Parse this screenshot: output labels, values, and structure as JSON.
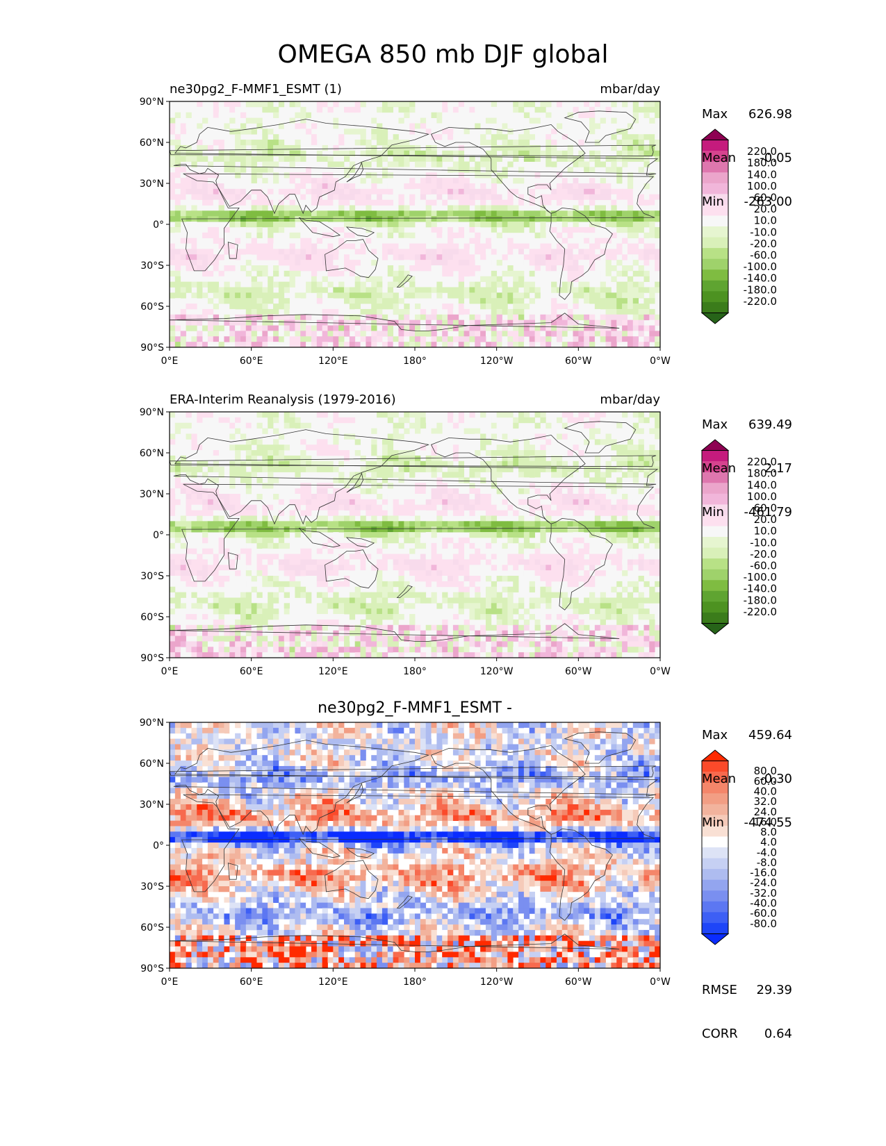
{
  "title": "OMEGA 850 mb DJF global",
  "panels": [
    {
      "id": "test",
      "left_title": "ne30pg2_F-MMF1_ESMT (1)",
      "center_title": "",
      "units": "mbar/day",
      "stats": [
        {
          "label": "Max",
          "value": "626.98"
        },
        {
          "label": "Mean",
          "value": "-0.05"
        },
        {
          "label": "Min",
          "value": "-263.00"
        }
      ],
      "colorbar_labels": [
        "220.0",
        "180.0",
        "140.0",
        "100.0",
        "60.0",
        "20.0",
        "10.0",
        "-10.0",
        "-20.0",
        "-60.0",
        "-100.0",
        "-140.0",
        "-180.0",
        "-220.0"
      ],
      "colorbar_colors": [
        "#8e0152",
        "#c51b7d",
        "#d6448f",
        "#de77ae",
        "#eba5cb",
        "#f1b6da",
        "#f8dbec",
        "#fde0ef",
        "#f7f7f7",
        "#e6f5d0",
        "#d9f0b9",
        "#b8e186",
        "#9fd26b",
        "#7fbc41",
        "#5fa431",
        "#4d9221",
        "#3b7c1b",
        "#276419"
      ],
      "footer": []
    },
    {
      "id": "reference",
      "left_title": "ERA-Interim Reanalysis (1979-2016)",
      "center_title": "",
      "units": "mbar/day",
      "stats": [
        {
          "label": "Max",
          "value": "639.49"
        },
        {
          "label": "Mean",
          "value": "2.17"
        },
        {
          "label": "Min",
          "value": "-461.79"
        }
      ],
      "colorbar_labels": [
        "220.0",
        "180.0",
        "140.0",
        "100.0",
        "60.0",
        "20.0",
        "10.0",
        "-10.0",
        "-20.0",
        "-60.0",
        "-100.0",
        "-140.0",
        "-180.0",
        "-220.0"
      ],
      "colorbar_colors": [
        "#8e0152",
        "#c51b7d",
        "#d6448f",
        "#de77ae",
        "#eba5cb",
        "#f1b6da",
        "#f8dbec",
        "#fde0ef",
        "#f7f7f7",
        "#e6f5d0",
        "#d9f0b9",
        "#b8e186",
        "#9fd26b",
        "#7fbc41",
        "#5fa431",
        "#4d9221",
        "#3b7c1b",
        "#276419"
      ],
      "footer": []
    },
    {
      "id": "difference",
      "left_title": "",
      "center_title": "ne30pg2_F-MMF1_ESMT -",
      "units": "",
      "stats": [
        {
          "label": "Max",
          "value": "459.64"
        },
        {
          "label": "Mean",
          "value": "-0.30"
        },
        {
          "label": "Min",
          "value": "-474.55"
        }
      ],
      "colorbar_labels": [
        "80.0",
        "60.0",
        "40.0",
        "32.0",
        "24.0",
        "16.0",
        "8.0",
        "4.0",
        "-4.0",
        "-8.0",
        "-16.0",
        "-24.0",
        "-32.0",
        "-40.0",
        "-60.0",
        "-80.0"
      ],
      "colorbar_colors": [
        "#ff2a00",
        "#fb4a2a",
        "#f76a4e",
        "#f4866a",
        "#f29e84",
        "#f2b39d",
        "#f5cab9",
        "#f9e0d4",
        "#ffffff",
        "#dde3f6",
        "#c6d0f3",
        "#aebcf0",
        "#93a5ef",
        "#7a8ff0",
        "#5c77f2",
        "#3d5ff5",
        "#1e45f8",
        "#0a2cff"
      ],
      "footer": [
        {
          "label": "RMSE",
          "value": "29.39"
        },
        {
          "label": "CORR",
          "value": "0.64"
        }
      ]
    }
  ],
  "axes": {
    "lat_ticks": [
      "90°N",
      "60°N",
      "30°N",
      "0°",
      "30°S",
      "60°S",
      "90°S"
    ],
    "lon_ticks": [
      "0°E",
      "60°E",
      "120°E",
      "180°",
      "120°W",
      "60°W",
      "0°W"
    ]
  },
  "colors": {
    "frame": "#000000",
    "land_outline": "#333333"
  }
}
